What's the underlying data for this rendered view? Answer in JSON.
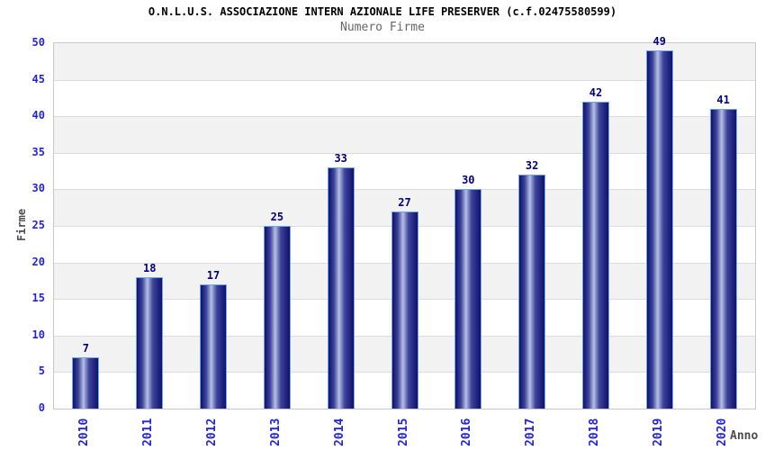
{
  "header": {
    "title": "O.N.L.U.S. ASSOCIAZIONE INTERN AZIONALE LIFE PRESERVER (c.f.02475580599)",
    "subtitle": "Numero Firme"
  },
  "chart_data": {
    "type": "bar",
    "title": "O.N.L.U.S. ASSOCIAZIONE INTERN AZIONALE LIFE PRESERVER (c.f.02475580599)",
    "subtitle": "Numero Firme",
    "categories": [
      "2010",
      "2011",
      "2012",
      "2013",
      "2014",
      "2015",
      "2016",
      "2017",
      "2018",
      "2019",
      "2020"
    ],
    "values": [
      7,
      18,
      17,
      25,
      33,
      27,
      30,
      32,
      42,
      49,
      41
    ],
    "xlabel": "Anno",
    "ylabel": "Firme",
    "ylim": [
      0,
      50
    ],
    "ytick_step": 5,
    "yticks": [
      0,
      5,
      10,
      15,
      20,
      25,
      30,
      35,
      40,
      45,
      50
    ],
    "grid": true,
    "legend": false,
    "band_fill": "alternating",
    "colors": {
      "bar_dark": "#10106e",
      "bar_mid": "#3c4499",
      "bar_highlight": "#b7bfe6",
      "bar_border": "#6ea7e8",
      "tick_label": "#2424d6",
      "value_label": "#000080",
      "axis_label": "#4d4d4d",
      "title": "#000000",
      "subtitle": "#666666",
      "band_gray": "#f2f2f2",
      "band_white": "#ffffff",
      "gridline": "#dcdcdc",
      "plot_border": "#c8c8c8"
    }
  }
}
